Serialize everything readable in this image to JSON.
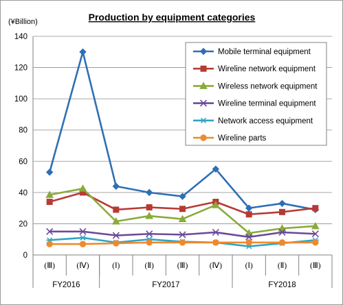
{
  "chart_data": {
    "type": "line",
    "title": "Production by equipment categories",
    "unit_label": "(¥Billion)",
    "ylim": [
      0,
      140
    ],
    "y_ticks": [
      "0",
      "20",
      "40",
      "60",
      "80",
      "100",
      "120",
      "140"
    ],
    "grid": true,
    "legend_position": "top-right",
    "categories": [
      "(Ⅲ)",
      "(Ⅳ)",
      "(Ⅰ)",
      "(Ⅱ)",
      "(Ⅲ)",
      "(Ⅳ)",
      "(Ⅰ)",
      "(Ⅱ)",
      "(Ⅲ)"
    ],
    "fiscal_years": [
      {
        "label": "FY2016",
        "span": 2
      },
      {
        "label": "FY2017",
        "span": 4
      },
      {
        "label": "FY2018",
        "span": 3
      }
    ],
    "series": [
      {
        "name": "Mobile terminal equipment",
        "color": "#2e6fb5",
        "marker": "diamond",
        "values": [
          53,
          130,
          44,
          40,
          37.5,
          55,
          30,
          33,
          29
        ]
      },
      {
        "name": "Wireline network equipment",
        "color": "#b73a34",
        "marker": "square",
        "values": [
          34,
          40,
          29,
          30.5,
          29.5,
          34,
          26,
          27.5,
          30
        ]
      },
      {
        "name": "Wireless network equipment",
        "color": "#8aaa3a",
        "marker": "triangle",
        "values": [
          38.5,
          42.5,
          21.5,
          25,
          23,
          32,
          14,
          17,
          18.5
        ]
      },
      {
        "name": "Wireline terminal equipment",
        "color": "#6b4a9a",
        "marker": "x",
        "values": [
          15,
          15,
          12.5,
          13.5,
          13,
          14.5,
          11.5,
          14.5,
          13.5
        ]
      },
      {
        "name": "Network access equipment",
        "color": "#2fa4c4",
        "marker": "star",
        "values": [
          9.5,
          11,
          8,
          10,
          8.5,
          8,
          5.5,
          7.5,
          9.5
        ]
      },
      {
        "name": "Wireline parts",
        "color": "#ee8a2e",
        "marker": "circle",
        "values": [
          7,
          7,
          7.5,
          8,
          8,
          8,
          8,
          8,
          8
        ]
      }
    ]
  }
}
